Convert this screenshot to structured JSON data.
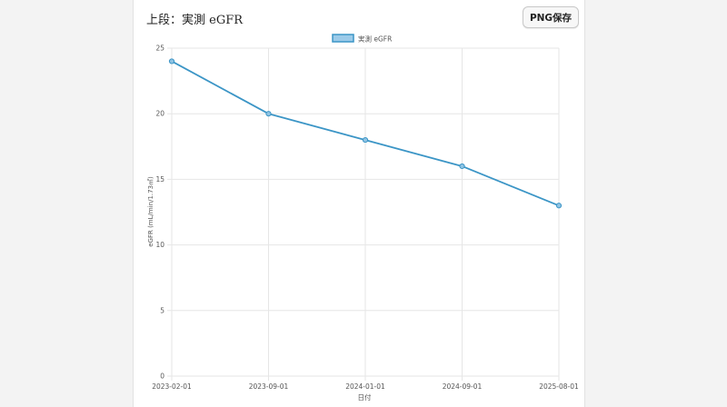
{
  "panel": {
    "title": "上段：実測 eGFR",
    "png_button": "PNG保存"
  },
  "colors": {
    "line": "#3b95c6",
    "point_fill": "#8fc3e3",
    "legend_fill": "#9ccbe9",
    "grid": "#e6e6e6",
    "text": "#555555"
  },
  "chart_data": {
    "type": "line",
    "x": [
      "2023-02-01",
      "2023-09-01",
      "2024-01-01",
      "2024-09-01",
      "2025-08-01"
    ],
    "series": [
      {
        "name": "実測 eGFR",
        "values": [
          24,
          20,
          18,
          16,
          13
        ]
      }
    ],
    "xlabel": "日付",
    "ylabel": "eGFR (mL/min/1.73㎡)",
    "ylim": [
      0,
      25
    ],
    "yticks": [
      0,
      5,
      10,
      15,
      20,
      25
    ],
    "grid": true,
    "legend": "top-center"
  }
}
